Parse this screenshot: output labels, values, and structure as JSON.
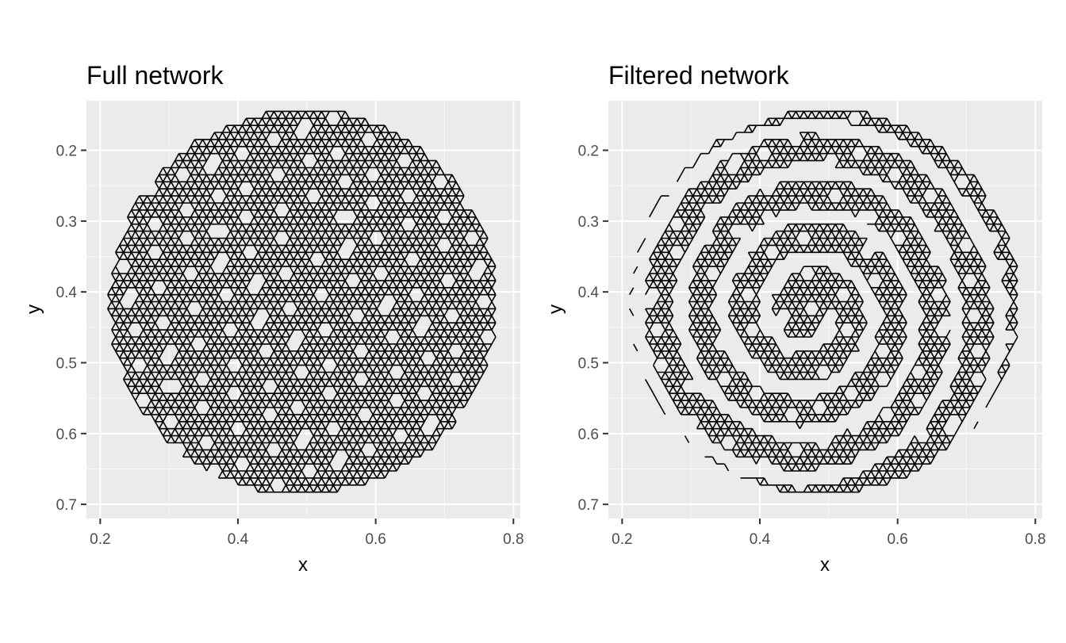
{
  "chart_data": [
    {
      "type": "network",
      "title": "Full network",
      "xlabel": "x",
      "ylabel": "y",
      "xlim": [
        0.18,
        0.81
      ],
      "ylim": [
        0.72,
        0.13
      ],
      "y_reversed": true,
      "x_ticks": [
        0.2,
        0.4,
        0.6,
        0.8
      ],
      "y_ticks": [
        0.2,
        0.3,
        0.4,
        0.5,
        0.6,
        0.7
      ],
      "x_tick_labels": [
        "0.2",
        "0.4",
        "0.6",
        "0.8"
      ],
      "y_tick_labels": [
        "0.2",
        "0.3",
        "0.4",
        "0.5",
        "0.6",
        "0.7"
      ],
      "grid": true,
      "node_extent": {
        "x": [
          0.21,
          0.78
        ],
        "y": [
          0.14,
          0.69
        ]
      },
      "edges": "dense triangular lattice filling a roughly circular region"
    },
    {
      "type": "network",
      "title": "Filtered network",
      "xlabel": "x",
      "ylabel": "y",
      "xlim": [
        0.18,
        0.81
      ],
      "ylim": [
        0.72,
        0.13
      ],
      "y_reversed": true,
      "x_ticks": [
        0.2,
        0.4,
        0.6,
        0.8
      ],
      "y_ticks": [
        0.2,
        0.3,
        0.4,
        0.5,
        0.6,
        0.7
      ],
      "x_tick_labels": [
        "0.2",
        "0.4",
        "0.6",
        "0.8"
      ],
      "y_tick_labels": [
        "0.2",
        "0.3",
        "0.4",
        "0.5",
        "0.6",
        "0.7"
      ],
      "grid": true,
      "node_extent": {
        "x": [
          0.21,
          0.78
        ],
        "y": [
          0.14,
          0.69
        ]
      },
      "edges": "triangular lattice with edges removed along a spiral-shaped gap"
    }
  ],
  "colors": {
    "panel_background": "#ebebeb",
    "grid_major": "#ffffff",
    "edge_stroke": "#000000",
    "tick_text": "#4d4d4d"
  }
}
